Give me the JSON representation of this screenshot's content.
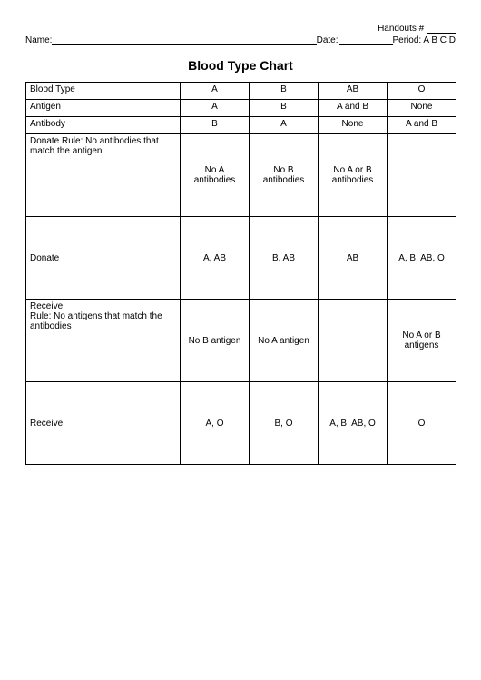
{
  "header": {
    "handouts_label": "Handouts #",
    "name_label": "Name:",
    "date_label": "Date:",
    "period_label": "Period: A B C D"
  },
  "title": "Blood Type Chart",
  "table": {
    "columns": [
      "Blood Type",
      "A",
      "B",
      "AB",
      "O"
    ],
    "rows": {
      "antigen": {
        "label": "Antigen",
        "cells": [
          "A",
          "B",
          "A and B",
          "None"
        ]
      },
      "antibody": {
        "label": "Antibody",
        "cells": [
          "B",
          "A",
          "None",
          "A and B"
        ]
      },
      "donate_rule": {
        "label": "Donate Rule:  No antibodies that match the antigen",
        "cells": [
          "No A antibodies",
          "No B antibodies",
          "No A or B antibodies",
          ""
        ]
      },
      "donate": {
        "label": "Donate",
        "cells": [
          "A, AB",
          "B, AB",
          "AB",
          "A, B, AB, O"
        ]
      },
      "receive_rule": {
        "label": "Receive\nRule:  No antigens that match the antibodies",
        "cells": [
          "No B antigen",
          "No A antigen",
          "",
          "No A or B antigens"
        ]
      },
      "receive": {
        "label": "Receive",
        "cells": [
          "A, O",
          "B, O",
          "A, B, AB, O",
          "O"
        ]
      }
    },
    "border_color": "#000000",
    "background_color": "#ffffff",
    "font_family": "Comic Sans MS",
    "font_size_pt": 10,
    "title_font_size_pt": 14
  }
}
